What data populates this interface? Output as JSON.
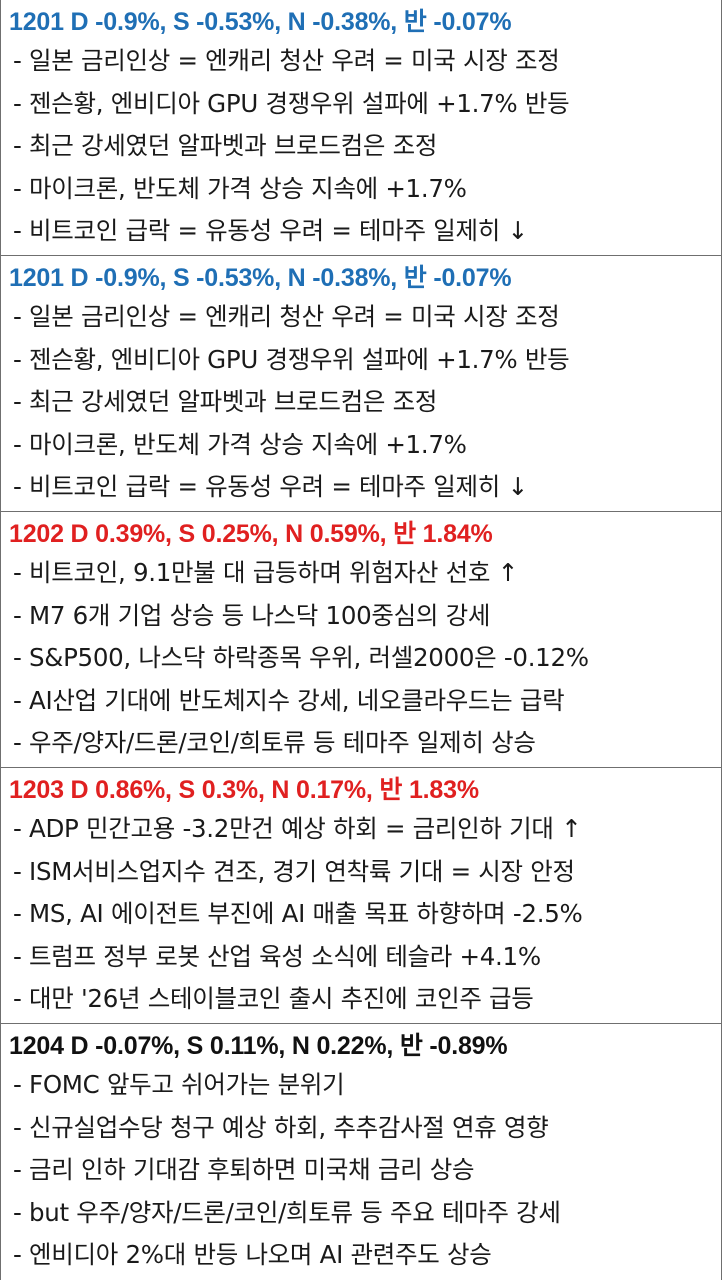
{
  "blocks": [
    {
      "header": "1201 D -0.9%, S -0.53%, N -0.38%, 반 -0.07%",
      "header_color": "#1f6fb5",
      "items": [
        "- 일본 금리인상 = 엔캐리 청산 우려 = 미국 시장 조정",
        "- 젠슨황, 엔비디아 GPU 경쟁우위 설파에 +1.7% 반등",
        "- 최근 강세였던 알파벳과 브로드컴은 조정",
        "- 마이크론, 반도체 가격 상승 지속에 +1.7%",
        "- 비트코인 급락 = 유동성 우려 = 테마주 일제히 ↓"
      ]
    },
    {
      "header": "1201 D -0.9%, S -0.53%, N -0.38%, 반 -0.07%",
      "header_color": "#1f6fb5",
      "items": [
        "- 일본 금리인상 = 엔캐리 청산 우려 = 미국 시장 조정",
        "- 젠슨황, 엔비디아 GPU 경쟁우위 설파에 +1.7% 반등",
        "- 최근 강세였던 알파벳과 브로드컴은 조정",
        "- 마이크론, 반도체 가격 상승 지속에 +1.7%",
        "- 비트코인 급락 = 유동성 우려 = 테마주 일제히 ↓"
      ]
    },
    {
      "header": "1202 D 0.39%, S 0.25%, N 0.59%, 반 1.84%",
      "header_color": "#e02020",
      "items": [
        "- 비트코인, 9.1만불 대 급등하며 위험자산 선호 ↑",
        "- M7 6개 기업 상승 등 나스닥 100중심의 강세",
        "- S&P500, 나스닥 하락종목 우위, 러셀2000은 -0.12%",
        "- AI산업 기대에 반도체지수 강세, 네오클라우드는 급락",
        "- 우주/양자/드론/코인/희토류 등 테마주 일제히 상승"
      ]
    },
    {
      "header": "1203 D 0.86%, S 0.3%, N 0.17%, 반 1.83%",
      "header_color": "#e02020",
      "items": [
        "- ADP 민간고용 -3.2만건 예상 하회 = 금리인하 기대 ↑",
        "- ISM서비스업지수 견조, 경기 연착륙 기대 = 시장 안정",
        "- MS, AI 에이전트 부진에 AI 매출 목표 하향하며 -2.5%",
        "- 트럼프 정부 로봇 산업 육성 소식에 테슬라 +4.1%",
        "- 대만 '26년 스테이블코인 출시 추진에 코인주 급등"
      ]
    },
    {
      "header": "1204 D -0.07%, S 0.11%, N 0.22%, 반 -0.89%",
      "header_color": "#111111",
      "items": [
        "- FOMC 앞두고 쉬어가는 분위기",
        "- 신규실업수당 청구 예상 하회, 추추감사절 연휴 영향",
        "- 금리 인하 기대감 후퇴하면 미국채 금리 상승",
        "- but 우주/양자/드론/코인/희토류 등 주요 테마주 강세",
        "- 엔비디아 2%대 반등 나오며 AI 관련주도 상승"
      ]
    }
  ]
}
